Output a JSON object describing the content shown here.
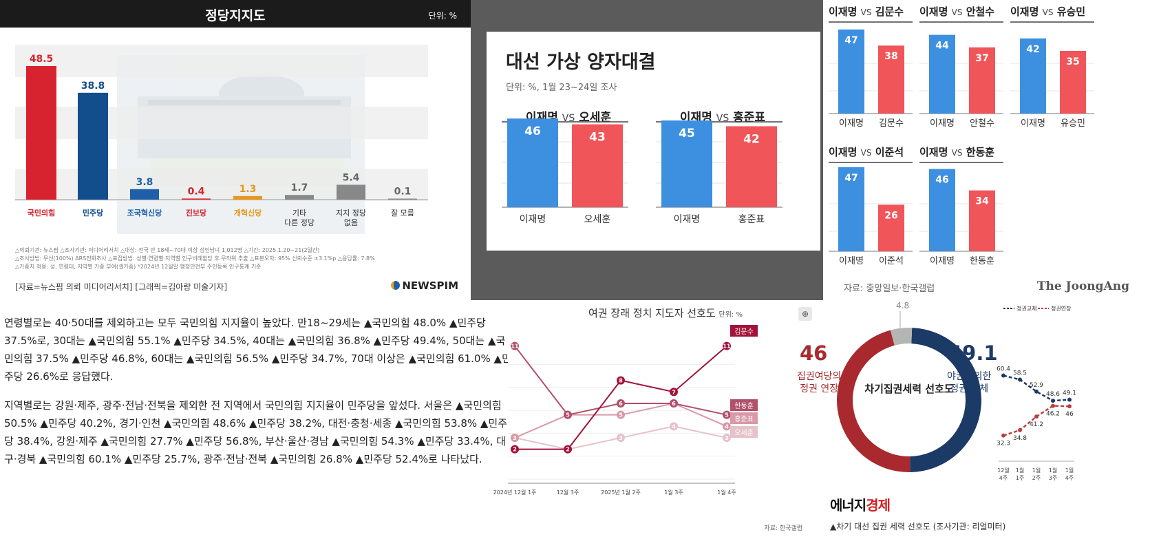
{
  "party_chart": {
    "title": "정당지지도",
    "unit": "단위: %",
    "notes": [
      "△의뢰기관: 뉴스핌 △조사기관: 미디어리서치 △대상: 전국 만 18세~70대 이상 성인남녀 1,012명 △기간: 2025.1.20~21(2일간)",
      "△조사방법: 무선(100%) ARS전화조사 △표집방법: 성별·연령별·지역별 인구비례할당 후 무작위 추출 △표본오차: 95% 신뢰수준 ±3.1%p △응답률: 7.8%",
      "△가중치 적용: 성, 연령대, 지역별 가중 부여(셀가중) *2024년 12월말 행정안전부 주민등록 인구통계 기준"
    ],
    "source": "[자료=뉴스핌 의뢰 미디어리서치] [그래픽=김아랑 미술기자]",
    "brand": "NEWSPIM"
  },
  "match_chart": {
    "title": "대선 가상 양자대결",
    "subtitle": "단위: %, 1월 23~24일 조사",
    "vs": "VS"
  },
  "multiples": {
    "source": "자료: 중앙일보·한국갤럽",
    "brand": "The JoongAng",
    "vs": "VS"
  },
  "article": {
    "paragraphs": [
      "연령별로는 40·50대를 제외하고는 모두 국민의힘 지지율이 높았다. 만18~29세는 ▲국민의힘 48.0% ▲민주당 37.5%로, 30대는 ▲국민의힘 55.1% ▲민주당 34.5%, 40대는 ▲국민의힘 36.8% ▲민주당 49.4%, 50대는 ▲국민의힘 37.5% ▲민주당 46.8%, 60대는 ▲국민의힘 56.5% ▲민주당 34.7%, 70대 이상은 ▲국민의힘 61.0% ▲민주당 26.6%로 응답했다.",
      "지역별로는 강원·제주, 광주·전남·전북을 제외한 전 지역에서 국민의힘 지지율이 민주당을 앞섰다. 서울은 ▲국민의힘 50.5% ▲민주당 40.2%, 경기·인천 ▲국민의힘 48.6% ▲민주당 38.2%, 대전·충청·세종 ▲국민의힘 53.8% ▲민주당 38.4%, 강원·제주 ▲국민의힘 27.7% ▲민주당 56.8%, 부산·울산·경남 ▲국민의힘 54.3% ▲민주당 33.4%, 대구·경북 ▲국민의힘 60.1% ▲민주당 25.7%, 광주·전남·전북 ▲국민의힘 26.8% ▲민주당 52.4%로 나타났다."
    ]
  },
  "leader_chart": {
    "title": "여권 장래 정치 지도자 선호도",
    "unit": "단위: %",
    "source": "자료: 한국갤럽"
  },
  "donut_chart": {
    "center": "차기집권세력 선호도",
    "label_left": [
      "집권여당의",
      "정권 연장"
    ],
    "label_right": [
      "야권에의한",
      "정권 교체"
    ],
    "brand_a": "에너지",
    "brand_b": "경제",
    "caption": "▲차기 대선 집권 세력 선호도 (조사기관: 리얼미터)"
  },
  "colors": {
    "ppp": "#d7232f",
    "dem": "#124e8c",
    "blue": "#3d8fe0",
    "red": "#f0555a",
    "gray": "#888888",
    "line_dark": "#a3123a",
    "navy": "#1c3a66",
    "maroon": "#a8292e"
  },
  "chart_data": [
    {
      "type": "bar",
      "title": "정당지지도",
      "categories": [
        "국민의힘",
        "민주당",
        "조국혁신당",
        "진보당",
        "개혁신당",
        "기타 다른 정당",
        "지지 정당 없음",
        "잘 모름"
      ],
      "values": [
        48.5,
        38.8,
        3.8,
        0.4,
        1.3,
        1.7,
        5.4,
        0.1
      ],
      "ylim": [
        0,
        55
      ]
    },
    {
      "type": "bar",
      "title": "대선 가상 양자대결",
      "groups": [
        {
          "a": "이재명",
          "b": "오세훈",
          "values": [
            46,
            43
          ]
        },
        {
          "a": "이재명",
          "b": "홍준표",
          "values": [
            45,
            42
          ]
        }
      ],
      "ylim": [
        0,
        50
      ]
    },
    {
      "type": "bar",
      "groups": [
        {
          "a": "이재명",
          "b": "김문수",
          "values": [
            47,
            38
          ]
        },
        {
          "a": "이재명",
          "b": "안철수",
          "values": [
            44,
            37
          ]
        },
        {
          "a": "이재명",
          "b": "유승민",
          "values": [
            42,
            35
          ]
        },
        {
          "a": "이재명",
          "b": "이준석",
          "values": [
            47,
            26
          ]
        },
        {
          "a": "이재명",
          "b": "한동훈",
          "values": [
            46,
            34
          ]
        }
      ],
      "ylim": [
        0,
        50
      ]
    },
    {
      "type": "line",
      "title": "여권 장래 정치 지도자 선호도",
      "x": [
        "2024년 12월 1주",
        "12월 3주",
        "2025년 1월 2주",
        "1월 3주",
        "1월 4주"
      ],
      "series": [
        {
          "name": "김문수",
          "values": [
            2,
            2,
            8,
            7,
            11
          ]
        },
        {
          "name": "한동훈",
          "values": [
            11,
            5,
            6,
            6,
            5
          ]
        },
        {
          "name": "홍준표",
          "values": [
            3,
            5,
            5,
            6,
            4
          ]
        },
        {
          "name": "오세훈",
          "values": [
            3,
            2,
            3,
            4,
            3
          ]
        }
      ],
      "ylim": [
        0,
        12
      ]
    },
    {
      "type": "pie",
      "title": "차기집권세력 선호도",
      "slices": [
        {
          "label": "야권에의한 정권 교체",
          "value": 49.1
        },
        {
          "label": "집권여당의 정권 연장",
          "value": 46.0
        },
        {
          "label": "",
          "value": 4.8
        }
      ]
    },
    {
      "type": "line",
      "x": [
        "12월 4주",
        "1월 1주",
        "1월 2주",
        "1월 3주",
        "1월 4주"
      ],
      "legend": [
        "정권교체",
        "정권연장"
      ],
      "series": [
        {
          "name": "정권교체",
          "values": [
            60.4,
            58.5,
            52.9,
            48.6,
            49.1
          ]
        },
        {
          "name": "정권연장",
          "values": [
            32.3,
            34.8,
            41.2,
            46.2,
            46.0
          ]
        }
      ],
      "extra_labels": [
        "48.6",
        "49.1"
      ]
    }
  ]
}
